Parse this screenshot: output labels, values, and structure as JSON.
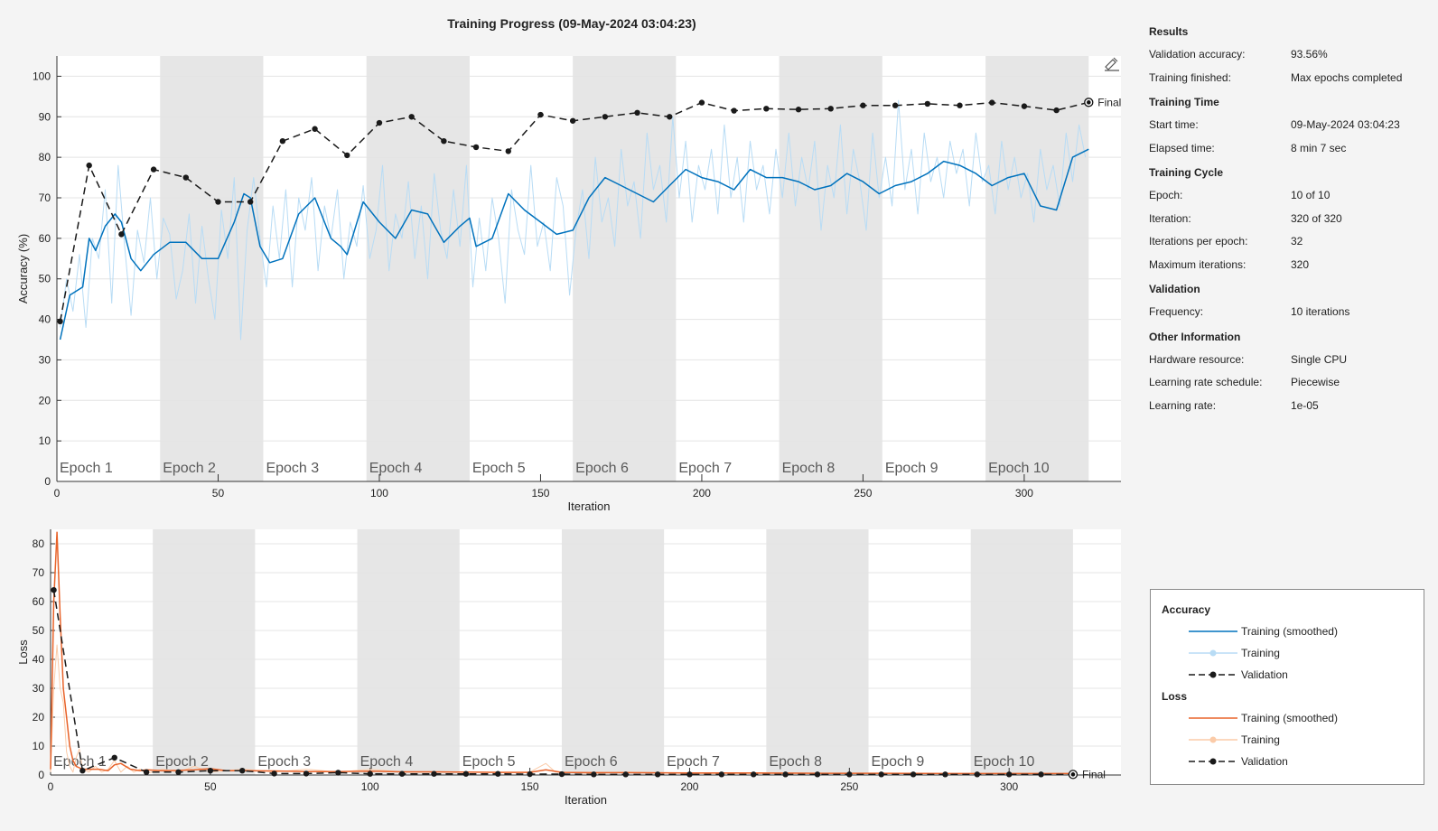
{
  "title": "Training Progress (09-May-2024 03:04:23)",
  "colors": {
    "acc_smoothed": "#0072bd",
    "acc_training": "#b8dcf5",
    "loss_smoothed": "#e8632a",
    "loss_training": "#fbcba8",
    "validation": "#1a1a1a",
    "epoch_band": "#e6e6e6",
    "grid": "#e4e4e4"
  },
  "results": {
    "sections": [
      {
        "title": "Results",
        "rows": [
          {
            "label": "Validation accuracy:",
            "value": "93.56%"
          },
          {
            "label": "Training finished:",
            "value": "Max epochs completed"
          }
        ]
      },
      {
        "title": "Training Time",
        "rows": [
          {
            "label": "Start time:",
            "value": "09-May-2024 03:04:23"
          },
          {
            "label": "Elapsed time:",
            "value": "8 min 7 sec"
          }
        ]
      },
      {
        "title": "Training Cycle",
        "rows": [
          {
            "label": "Epoch:",
            "value": "10 of 10"
          },
          {
            "label": "Iteration:",
            "value": "320 of 320"
          },
          {
            "label": "Iterations per epoch:",
            "value": "32"
          },
          {
            "label": "Maximum iterations:",
            "value": "320"
          }
        ]
      },
      {
        "title": "Validation",
        "rows": [
          {
            "label": "Frequency:",
            "value": "10 iterations"
          }
        ]
      },
      {
        "title": "Other Information",
        "rows": [
          {
            "label": "Hardware resource:",
            "value": "Single CPU"
          },
          {
            "label": "Learning rate schedule:",
            "value": "Piecewise"
          },
          {
            "label": "Learning rate:",
            "value": "1e-05"
          }
        ]
      }
    ]
  },
  "legend": {
    "accuracy_title": "Accuracy",
    "loss_title": "Loss",
    "training_smoothed": "Training (smoothed)",
    "training": "Training",
    "validation": "Validation"
  },
  "chart_data": [
    {
      "type": "line",
      "ylabel": "Accuracy (%)",
      "xlabel": "Iteration",
      "xlim": [
        0,
        330
      ],
      "ylim": [
        0,
        105
      ],
      "xticks": [
        0,
        50,
        100,
        150,
        200,
        250,
        300
      ],
      "yticks": [
        0,
        10,
        20,
        30,
        40,
        50,
        60,
        70,
        80,
        90,
        100
      ],
      "grid": true,
      "epochs": [
        "Epoch 1",
        "Epoch 2",
        "Epoch 3",
        "Epoch 4",
        "Epoch 5",
        "Epoch 6",
        "Epoch 7",
        "Epoch 8",
        "Epoch 9",
        "Epoch 10"
      ],
      "iterations_per_epoch": 32,
      "final_label": "Final",
      "series": [
        {
          "name": "Training (smoothed)",
          "x": [
            1,
            4,
            8,
            10,
            12,
            15,
            18,
            20,
            23,
            26,
            30,
            35,
            40,
            45,
            50,
            55,
            58,
            60,
            63,
            66,
            70,
            75,
            80,
            85,
            88,
            90,
            95,
            100,
            105,
            110,
            115,
            120,
            125,
            128,
            130,
            135,
            140,
            145,
            150,
            155,
            160,
            165,
            170,
            175,
            180,
            185,
            190,
            195,
            200,
            205,
            210,
            215,
            220,
            225,
            230,
            235,
            240,
            245,
            250,
            255,
            260,
            265,
            270,
            275,
            280,
            285,
            290,
            295,
            300,
            305,
            310,
            315,
            320
          ],
          "y": [
            35,
            46,
            48,
            60,
            57,
            63,
            66,
            64,
            55,
            52,
            56,
            59,
            59,
            55,
            55,
            64,
            71,
            70,
            58,
            54,
            55,
            66,
            70,
            60,
            58,
            56,
            69,
            64,
            60,
            67,
            66,
            59,
            63,
            65,
            58,
            60,
            71,
            67,
            64,
            61,
            62,
            70,
            75,
            73,
            71,
            69,
            73,
            77,
            75,
            74,
            72,
            77,
            75,
            75,
            74,
            72,
            73,
            76,
            74,
            71,
            73,
            74,
            76,
            79,
            78,
            76,
            73,
            75,
            76,
            68,
            67,
            80,
            82
          ]
        },
        {
          "name": "Training",
          "x": [
            1,
            3,
            5,
            7,
            9,
            11,
            13,
            15,
            17,
            19,
            21,
            23,
            25,
            27,
            29,
            31,
            33,
            35,
            37,
            39,
            41,
            43,
            45,
            47,
            49,
            51,
            53,
            55,
            57,
            59,
            61,
            63,
            65,
            67,
            69,
            71,
            73,
            75,
            77,
            79,
            81,
            83,
            85,
            87,
            89,
            91,
            93,
            95,
            97,
            99,
            101,
            103,
            105,
            107,
            109,
            111,
            113,
            115,
            117,
            119,
            121,
            123,
            125,
            127,
            129,
            131,
            133,
            135,
            137,
            139,
            141,
            143,
            145,
            147,
            149,
            151,
            153,
            155,
            157,
            159,
            161,
            163,
            165,
            167,
            169,
            171,
            173,
            175,
            177,
            179,
            181,
            183,
            185,
            187,
            189,
            191,
            193,
            195,
            197,
            199,
            201,
            203,
            205,
            207,
            209,
            211,
            213,
            215,
            217,
            219,
            221,
            223,
            225,
            227,
            229,
            231,
            233,
            235,
            237,
            239,
            241,
            243,
            245,
            247,
            249,
            251,
            253,
            255,
            257,
            259,
            261,
            263,
            265,
            267,
            269,
            271,
            273,
            275,
            277,
            279,
            281,
            283,
            285,
            287,
            289,
            291,
            293,
            295,
            297,
            299,
            301,
            303,
            305,
            307,
            309,
            311,
            313,
            315,
            317,
            319
          ],
          "y": [
            38,
            50,
            42,
            56,
            38,
            60,
            55,
            72,
            44,
            78,
            58,
            41,
            62,
            54,
            70,
            50,
            65,
            61,
            45,
            52,
            66,
            44,
            63,
            50,
            40,
            67,
            55,
            75,
            35,
            62,
            75,
            60,
            48,
            68,
            55,
            72,
            48,
            70,
            62,
            75,
            52,
            68,
            60,
            72,
            50,
            64,
            58,
            73,
            55,
            62,
            78,
            52,
            66,
            60,
            74,
            55,
            68,
            50,
            76,
            62,
            55,
            72,
            58,
            78,
            48,
            65,
            52,
            70,
            60,
            44,
            72,
            62,
            56,
            78,
            58,
            64,
            52,
            75,
            68,
            46,
            62,
            72,
            55,
            80,
            64,
            70,
            58,
            82,
            68,
            74,
            60,
            86,
            72,
            78,
            64,
            90,
            70,
            84,
            64,
            78,
            72,
            82,
            66,
            88,
            70,
            80,
            64,
            84,
            72,
            78,
            66,
            82,
            70,
            86,
            68,
            80,
            72,
            84,
            62,
            78,
            70,
            88,
            66,
            82,
            74,
            62,
            86,
            70,
            80,
            68,
            94,
            72,
            82,
            66,
            86,
            74,
            80,
            70,
            84,
            76,
            82,
            68,
            86,
            74,
            78,
            66,
            84,
            72,
            80,
            70,
            76,
            64,
            82,
            72,
            78,
            68,
            86,
            74,
            88,
            80
          ]
        },
        {
          "name": "Validation",
          "x": [
            1,
            10,
            20,
            30,
            40,
            50,
            60,
            70,
            80,
            90,
            100,
            110,
            120,
            130,
            140,
            150,
            160,
            170,
            180,
            190,
            200,
            210,
            220,
            230,
            240,
            250,
            260,
            270,
            280,
            290,
            300,
            310,
            320
          ],
          "y": [
            39.5,
            78,
            61,
            77,
            75,
            69,
            69,
            84,
            87,
            80.5,
            88.5,
            90,
            84,
            82.5,
            81.5,
            90.5,
            89,
            90,
            91,
            90,
            93.5,
            91.5,
            92,
            91.8,
            92,
            92.8,
            92.8,
            93.2,
            92.8,
            93.5,
            92.6,
            91.6,
            93.56
          ]
        }
      ]
    },
    {
      "type": "line",
      "ylabel": "Loss",
      "xlabel": "Iteration",
      "xlim": [
        0,
        335
      ],
      "ylim": [
        0,
        85
      ],
      "xticks": [
        0,
        50,
        100,
        150,
        200,
        250,
        300
      ],
      "yticks": [
        0,
        10,
        20,
        30,
        40,
        50,
        60,
        70,
        80
      ],
      "grid": true,
      "epochs": [
        "Epoch 1",
        "Epoch 2",
        "Epoch 3",
        "Epoch 4",
        "Epoch 5",
        "Epoch 6",
        "Epoch 7",
        "Epoch 8",
        "Epoch 9",
        "Epoch 10"
      ],
      "iterations_per_epoch": 32,
      "final_label": "Final",
      "series": [
        {
          "name": "Training (smoothed)",
          "x": [
            0,
            1,
            2,
            3,
            4,
            5,
            6,
            7,
            8,
            9,
            10,
            12,
            15,
            18,
            20,
            22,
            25,
            28,
            30,
            35,
            40,
            45,
            50,
            55,
            60,
            70,
            80,
            90,
            100,
            110,
            120,
            130,
            140,
            150,
            155,
            160,
            170,
            180,
            200,
            220,
            240,
            260,
            280,
            300,
            320
          ],
          "y": [
            2,
            60,
            84,
            55,
            30,
            20,
            10,
            5,
            3,
            2.5,
            2,
            2,
            2,
            1.5,
            3.5,
            4,
            2,
            1.5,
            1.8,
            1.5,
            1.6,
            1.8,
            2.2,
            1.5,
            1.5,
            1.4,
            1.2,
            1.2,
            1.3,
            1.1,
            1.1,
            1.0,
            0.9,
            0.9,
            1.8,
            0.9,
            0.8,
            0.8,
            0.7,
            0.7,
            0.6,
            0.6,
            0.5,
            0.5,
            0.5
          ]
        },
        {
          "name": "Training",
          "x": [
            0,
            1,
            2,
            3,
            4,
            5,
            6,
            7,
            8,
            9,
            10,
            12,
            14,
            16,
            18,
            20,
            22,
            24,
            26,
            28,
            30,
            35,
            40,
            45,
            50,
            55,
            60,
            70,
            80,
            90,
            100,
            110,
            120,
            130,
            140,
            150,
            155,
            158,
            160,
            170,
            180,
            200,
            220,
            240,
            260,
            280,
            300,
            320
          ],
          "y": [
            1,
            30,
            45,
            30,
            25,
            8,
            3,
            1,
            6,
            9,
            2,
            1,
            3,
            1,
            2,
            5,
            1,
            3,
            1,
            2,
            0.5,
            2,
            1,
            3,
            1,
            1.5,
            2,
            1,
            2,
            1,
            2,
            1,
            1,
            1,
            1,
            1,
            4,
            1,
            1,
            0.5,
            1,
            0.5,
            0.5,
            0.5,
            0.5,
            0.5,
            0.5,
            0.5
          ]
        },
        {
          "name": "Validation",
          "x": [
            1,
            10,
            20,
            30,
            40,
            50,
            60,
            70,
            80,
            90,
            100,
            110,
            120,
            130,
            140,
            150,
            160,
            170,
            180,
            190,
            200,
            210,
            220,
            230,
            240,
            250,
            260,
            270,
            280,
            290,
            300,
            310,
            320
          ],
          "y": [
            64,
            1.5,
            6,
            1,
            1,
            1.5,
            1.5,
            0.5,
            0.5,
            0.8,
            0.4,
            0.4,
            0.4,
            0.4,
            0.4,
            0.3,
            0.3,
            0.2,
            0.2,
            0.2,
            0.2,
            0.2,
            0.2,
            0.2,
            0.2,
            0.2,
            0.2,
            0.2,
            0.2,
            0.2,
            0.2,
            0.2,
            0.2
          ]
        }
      ]
    }
  ]
}
